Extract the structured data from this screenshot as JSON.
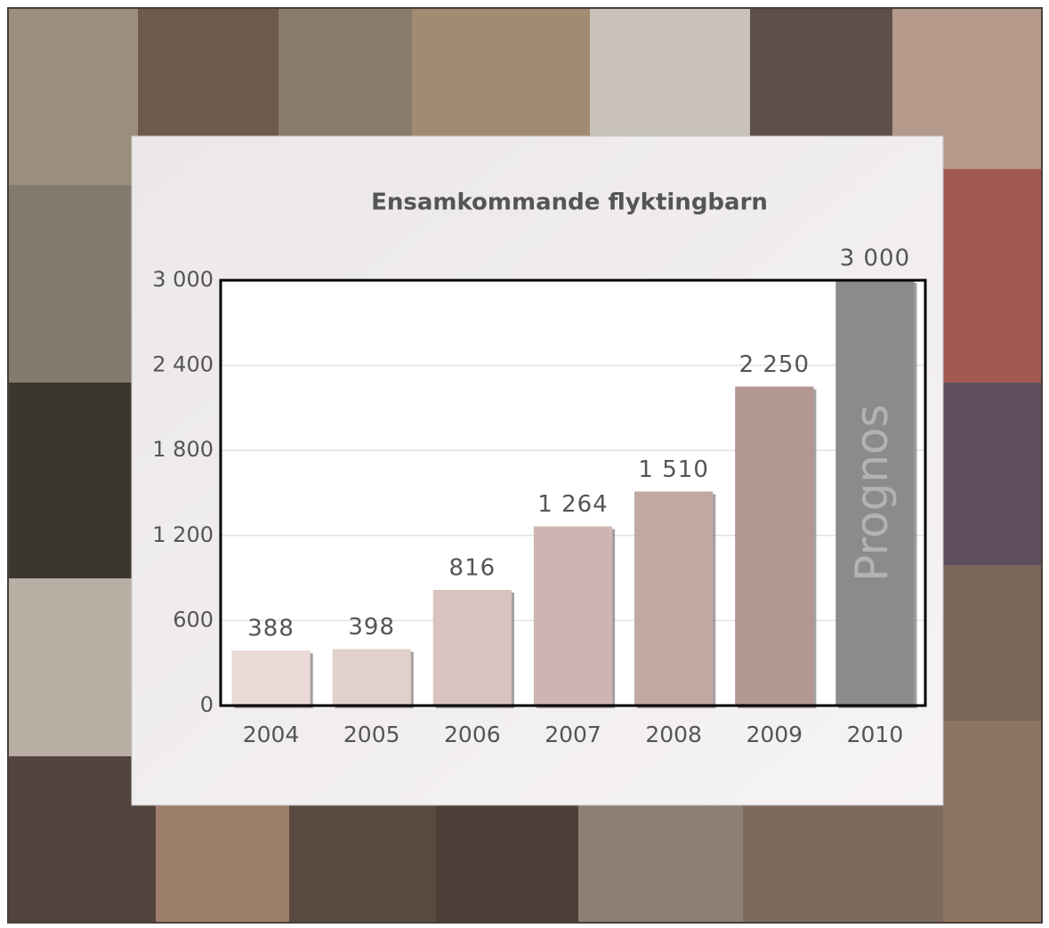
{
  "chart_data": {
    "type": "bar",
    "title": "Ensamkommande flyktingbarn",
    "categories": [
      "2004",
      "2005",
      "2006",
      "2007",
      "2008",
      "2009",
      "2010"
    ],
    "values": [
      388,
      398,
      816,
      1264,
      1510,
      2250,
      3000
    ],
    "value_labels": [
      "388",
      "398",
      "816",
      "1 264",
      "1 510",
      "2 250",
      "3 000"
    ],
    "colors": [
      "#ead9d6",
      "#e2d0cc",
      "#d8c3bf",
      "#cdb6b1",
      "#c1a8a3",
      "#b39892",
      "#8c8a8a"
    ],
    "annotation": "Prognos",
    "ylim": [
      0,
      3000
    ],
    "yticks": [
      0,
      600,
      {
        "value": 1200,
        "label": "1 200"
      },
      {
        "value": 1800,
        "label": "1 800"
      },
      {
        "value": 2400,
        "label": "2 400"
      },
      {
        "value": 3000,
        "label": "3 000"
      }
    ],
    "grid": true
  }
}
